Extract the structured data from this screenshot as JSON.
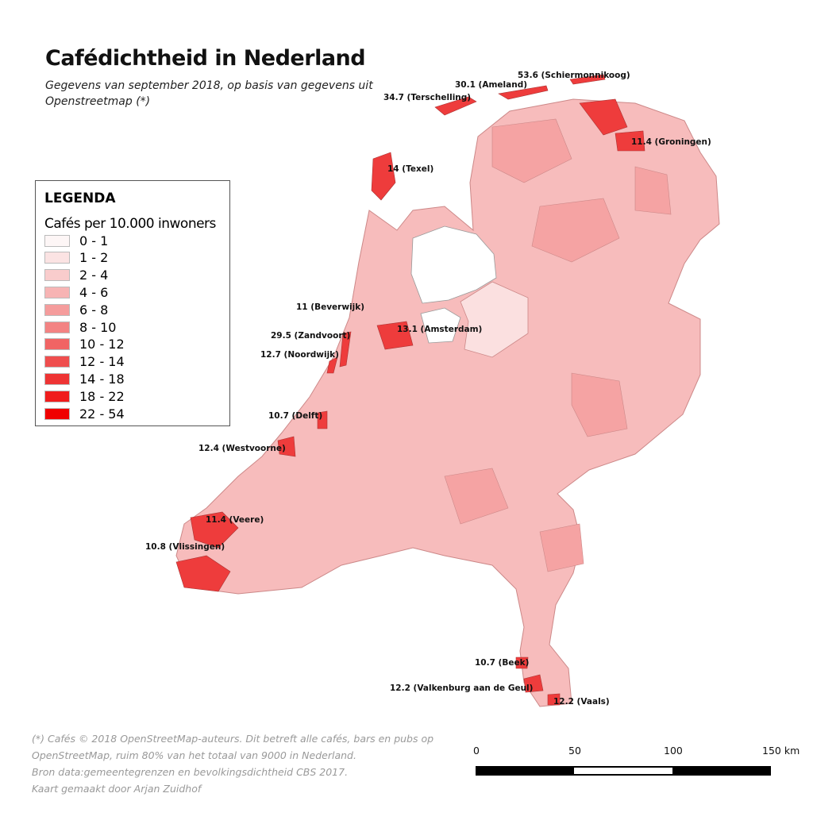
{
  "title": "Cafédichtheid in Nederland",
  "subtitle": "Gegevens van september 2018, op basis van gegevens uit Openstreetmap (*)",
  "legend": {
    "title": "LEGENDA",
    "subtitle": "Cafés per 10.000 inwoners",
    "items": [
      {
        "label": "0 - 1",
        "color": "#fdf6f6"
      },
      {
        "label": "1 - 2",
        "color": "#fbe3e3"
      },
      {
        "label": "2 - 4",
        "color": "#f9cccc"
      },
      {
        "label": "4 - 6",
        "color": "#f7b4b4"
      },
      {
        "label": "6 - 8",
        "color": "#f59c9c"
      },
      {
        "label": "8 - 10",
        "color": "#f38383"
      },
      {
        "label": "10 - 12",
        "color": "#f16464"
      },
      {
        "label": "12 - 14",
        "color": "#ef4e4e"
      },
      {
        "label": "14 - 18",
        "color": "#ee3434"
      },
      {
        "label": "18 - 22",
        "color": "#f01d1d"
      },
      {
        "label": "22 - 54",
        "color": "#f00000"
      }
    ]
  },
  "labels": [
    "53.6 (Schiermonnikoog)",
    "30.1 (Ameland)",
    "34.7 (Terschelling)",
    "11.4 (Groningen)",
    "14 (Texel)",
    "11 (Beverwijk)",
    "13.1 (Amsterdam)",
    "29.5 (Zandvoort)",
    "12.7 (Noordwijk)",
    "10.7 (Delft)",
    "12.4 (Westvoorne)",
    "11.4 (Veere)",
    "10.8 (Vlissingen)",
    "10.7 (Beek)",
    "12.2 (Valkenburg aan de Geul)",
    "12.2 (Vaals)"
  ],
  "footer": [
    "(*) Cafés © 2018 OpenStreetMap-auteurs. Dit betreft alle cafés, bars en pubs op",
    " OpenStreetMap, ruim 80% van het totaal van 9000 in Nederland.",
    "Bron data:gemeentegrenzen en bevolkingsdichtheid CBS 2017.",
    "Kaart gemaakt door Arjan Zuidhof"
  ],
  "scale": {
    "ticks": [
      "0",
      "50",
      "100",
      "150 km"
    ]
  }
}
